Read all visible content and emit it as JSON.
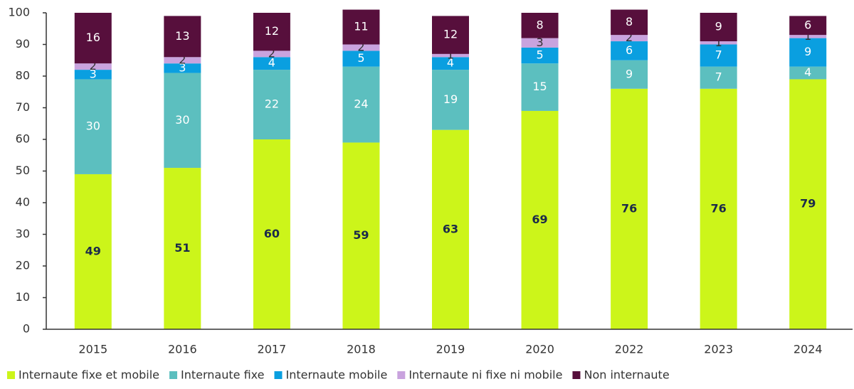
{
  "chart_data": {
    "type": "stacked_bar",
    "categories": [
      "2015",
      "2016",
      "2017",
      "2018",
      "2019",
      "2020",
      "2022",
      "2023",
      "2024"
    ],
    "series": [
      {
        "name": "Internaute fixe et mobile",
        "color": "#ccf51a",
        "label_color": "#1b2a4a",
        "values": [
          49,
          51,
          60,
          59,
          63,
          69,
          76,
          76,
          79
        ]
      },
      {
        "name": "Internaute fixe",
        "color": "#5cbfbf",
        "label_color": "#ffffff",
        "values": [
          30,
          30,
          22,
          24,
          19,
          15,
          9,
          7,
          4
        ]
      },
      {
        "name": "Internaute mobile",
        "color": "#0a9fe0",
        "label_color": "#ffffff",
        "values": [
          3,
          3,
          4,
          5,
          4,
          5,
          6,
          7,
          9
        ]
      },
      {
        "name": "Internaute ni fixe ni mobile",
        "color": "#c9a3de",
        "label_color": "#333333",
        "values": [
          2,
          2,
          2,
          2,
          1,
          3,
          2,
          1,
          1
        ]
      },
      {
        "name": "Non internaute",
        "color": "#570f3c",
        "label_color": "#ffffff",
        "values": [
          16,
          13,
          12,
          11,
          12,
          8,
          8,
          9,
          6
        ]
      }
    ],
    "ylim": [
      0,
      100
    ],
    "yticks": [
      0,
      10,
      20,
      30,
      40,
      50,
      60,
      70,
      80,
      90,
      100
    ],
    "grid": false,
    "legend": "bottom"
  }
}
